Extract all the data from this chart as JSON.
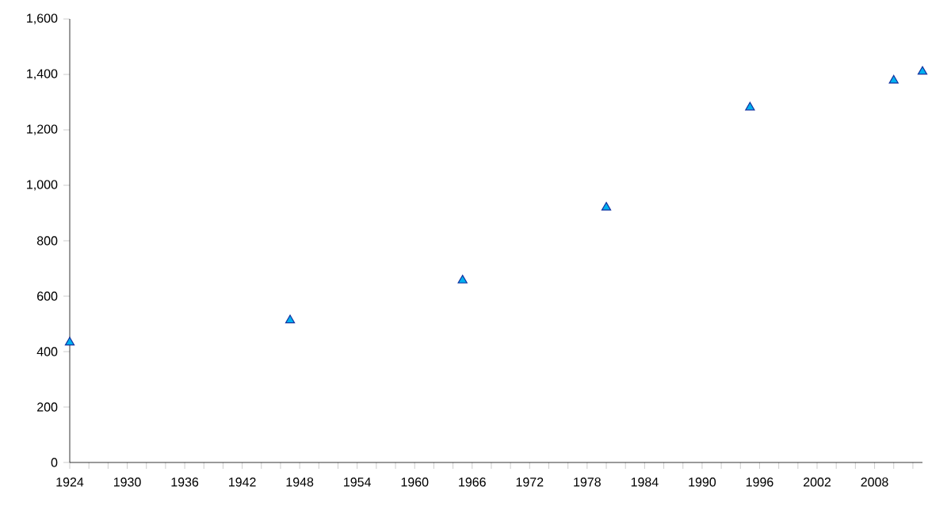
{
  "chart_data": {
    "type": "scatter",
    "marker": "triangle",
    "x": [
      1924,
      1947,
      1965,
      1980,
      1995,
      2010,
      2013
    ],
    "series": [
      {
        "color": "#00b0f0",
        "values": [
          433,
          513,
          657,
          920,
          1281,
          1378,
          1410
        ]
      }
    ],
    "xlim": [
      1924,
      2013
    ],
    "xticks": [
      1924,
      {
        "value": 1926,
        "label": null
      },
      {
        "value": 1928,
        "label": null
      },
      1930,
      {
        "value": 1932,
        "label": null
      },
      {
        "value": 1934,
        "label": null
      },
      1936,
      {
        "value": 1938,
        "label": null
      },
      {
        "value": 1940,
        "label": null
      },
      1942,
      {
        "value": 1944,
        "label": null
      },
      {
        "value": 1946,
        "label": null
      },
      1948,
      {
        "value": 1950,
        "label": null
      },
      {
        "value": 1952,
        "label": null
      },
      1954,
      {
        "value": 1956,
        "label": null
      },
      {
        "value": 1958,
        "label": null
      },
      1960,
      {
        "value": 1962,
        "label": null
      },
      {
        "value": 1964,
        "label": null
      },
      1966,
      {
        "value": 1968,
        "label": null
      },
      {
        "value": 1970,
        "label": null
      },
      1972,
      {
        "value": 1974,
        "label": null
      },
      {
        "value": 1976,
        "label": null
      },
      1978,
      {
        "value": 1980,
        "label": null
      },
      {
        "value": 1982,
        "label": null
      },
      1984,
      {
        "value": 1986,
        "label": null
      },
      {
        "value": 1988,
        "label": null
      },
      1990,
      {
        "value": 1992,
        "label": null
      },
      {
        "value": 1994,
        "label": null
      },
      1996,
      {
        "value": 1998,
        "label": null
      },
      {
        "value": 2000,
        "label": null
      },
      2002,
      {
        "value": 2004,
        "label": null
      },
      {
        "value": 2006,
        "label": null
      },
      2008,
      {
        "value": 2010,
        "label": null
      },
      {
        "value": 2012,
        "label": null
      }
    ],
    "ylim": [
      0,
      1600
    ],
    "yticks": [
      0,
      200,
      400,
      600,
      800,
      {
        "value": 1000,
        "label": "1,000"
      },
      {
        "value": 1200,
        "label": "1,200"
      },
      {
        "value": 1400,
        "label": "1,400"
      },
      {
        "value": 1600,
        "label": "1,600"
      }
    ],
    "grid": false
  }
}
